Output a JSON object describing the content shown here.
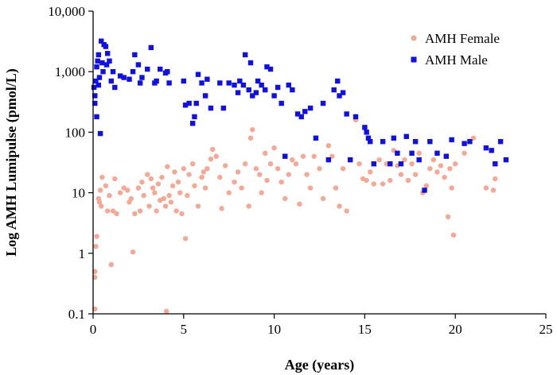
{
  "chart_data": {
    "type": "scatter",
    "xlabel": "Age (years)",
    "ylabel": "Log AMH Lumipulse (pmol/L)",
    "xlim": [
      0,
      25
    ],
    "ylim": [
      0.1,
      10000
    ],
    "y_scale": "log",
    "grid": false,
    "legend_position": "top-right",
    "x_ticks": [
      0,
      5,
      10,
      15,
      20,
      25
    ],
    "x_tick_labels": [
      "0",
      "5",
      "10",
      "15",
      "20",
      "25"
    ],
    "y_ticks": [
      0.1,
      1,
      10,
      100,
      1000,
      10000
    ],
    "y_tick_labels": [
      "0.1",
      "1",
      "10",
      "100",
      "1,000",
      "10,000"
    ],
    "series": [
      {
        "name": "AMH Female",
        "marker": "circle",
        "color": "#f4a896",
        "points": [
          [
            0.1,
            0.12
          ],
          [
            0.1,
            0.4
          ],
          [
            0.1,
            0.5
          ],
          [
            0.15,
            1.3
          ],
          [
            0.2,
            1.9
          ],
          [
            0.3,
            8
          ],
          [
            0.35,
            7
          ],
          [
            0.4,
            11
          ],
          [
            0.45,
            6
          ],
          [
            0.5,
            18
          ],
          [
            0.7,
            13
          ],
          [
            0.8,
            5
          ],
          [
            0.9,
            9
          ],
          [
            1.0,
            0.65
          ],
          [
            1.1,
            5
          ],
          [
            1.2,
            17
          ],
          [
            1.3,
            4.5
          ],
          [
            1.5,
            10
          ],
          [
            1.7,
            12
          ],
          [
            1.9,
            11
          ],
          [
            2.0,
            7
          ],
          [
            2.1,
            8
          ],
          [
            2.2,
            1.05
          ],
          [
            2.3,
            4.5
          ],
          [
            2.5,
            12
          ],
          [
            2.6,
            5
          ],
          [
            2.7,
            15
          ],
          [
            2.8,
            9
          ],
          [
            3.0,
            20
          ],
          [
            3.1,
            6
          ],
          [
            3.2,
            17
          ],
          [
            3.3,
            12
          ],
          [
            3.4,
            10
          ],
          [
            3.5,
            5
          ],
          [
            3.6,
            14
          ],
          [
            3.7,
            7.5
          ],
          [
            3.8,
            18
          ],
          [
            3.9,
            8
          ],
          [
            4.0,
            6
          ],
          [
            4.05,
            0.11
          ],
          [
            4.1,
            27
          ],
          [
            4.2,
            9
          ],
          [
            4.3,
            7
          ],
          [
            4.4,
            13
          ],
          [
            4.5,
            22
          ],
          [
            4.6,
            5
          ],
          [
            4.7,
            15
          ],
          [
            4.8,
            10
          ],
          [
            4.9,
            4.5
          ],
          [
            5.0,
            25
          ],
          [
            5.1,
            1.75
          ],
          [
            5.2,
            9
          ],
          [
            5.3,
            20
          ],
          [
            5.5,
            30
          ],
          [
            5.6,
            13
          ],
          [
            5.8,
            6
          ],
          [
            6.0,
            18
          ],
          [
            6.1,
            22
          ],
          [
            6.2,
            12
          ],
          [
            6.3,
            25
          ],
          [
            6.5,
            36
          ],
          [
            6.6,
            52
          ],
          [
            6.8,
            40
          ],
          [
            7.0,
            18
          ],
          [
            7.1,
            5.5
          ],
          [
            7.3,
            28
          ],
          [
            7.5,
            10
          ],
          [
            7.8,
            15
          ],
          [
            8.0,
            22
          ],
          [
            8.2,
            12
          ],
          [
            8.4,
            30
          ],
          [
            8.6,
            6
          ],
          [
            8.7,
            80
          ],
          [
            8.8,
            110
          ],
          [
            9.0,
            25
          ],
          [
            9.2,
            20
          ],
          [
            9.3,
            10
          ],
          [
            9.5,
            45
          ],
          [
            9.6,
            16
          ],
          [
            9.8,
            30
          ],
          [
            10.0,
            55
          ],
          [
            10.2,
            25
          ],
          [
            10.4,
            15
          ],
          [
            10.6,
            8
          ],
          [
            10.8,
            20
          ],
          [
            11.0,
            35
          ],
          [
            11.2,
            30
          ],
          [
            11.4,
            6.5
          ],
          [
            11.6,
            40
          ],
          [
            11.8,
            20
          ],
          [
            12.0,
            12
          ],
          [
            12.2,
            40
          ],
          [
            12.5,
            25
          ],
          [
            12.7,
            8
          ],
          [
            13.0,
            60
          ],
          [
            13.2,
            40
          ],
          [
            13.4,
            12
          ],
          [
            13.6,
            6
          ],
          [
            13.8,
            25
          ],
          [
            14.0,
            5
          ],
          [
            14.2,
            35
          ],
          [
            14.5,
            160
          ],
          [
            14.7,
            30
          ],
          [
            14.9,
            17
          ],
          [
            15.1,
            16
          ],
          [
            15.3,
            22
          ],
          [
            15.5,
            14
          ],
          [
            15.8,
            35
          ],
          [
            16.0,
            14
          ],
          [
            16.2,
            30
          ],
          [
            16.4,
            16
          ],
          [
            16.6,
            50
          ],
          [
            16.8,
            28
          ],
          [
            17.0,
            20
          ],
          [
            17.2,
            35
          ],
          [
            17.4,
            16
          ],
          [
            17.6,
            30
          ],
          [
            17.8,
            20
          ],
          [
            18.0,
            45
          ],
          [
            18.2,
            10
          ],
          [
            18.4,
            13
          ],
          [
            18.6,
            25
          ],
          [
            18.8,
            35
          ],
          [
            19.0,
            22
          ],
          [
            19.2,
            28
          ],
          [
            19.4,
            18
          ],
          [
            19.6,
            4
          ],
          [
            19.7,
            25
          ],
          [
            19.8,
            12
          ],
          [
            19.9,
            2.0
          ],
          [
            20.0,
            30
          ],
          [
            20.5,
            45
          ],
          [
            21.0,
            80
          ],
          [
            21.7,
            12
          ],
          [
            22.1,
            11
          ],
          [
            22.2,
            17
          ]
        ]
      },
      {
        "name": "AMH Male",
        "marker": "square",
        "color": "#1010e0",
        "points": [
          [
            0.05,
            550
          ],
          [
            0.1,
            400
          ],
          [
            0.1,
            300
          ],
          [
            0.15,
            700
          ],
          [
            0.2,
            180
          ],
          [
            0.2,
            1200
          ],
          [
            0.25,
            1500
          ],
          [
            0.3,
            600
          ],
          [
            0.3,
            1900
          ],
          [
            0.35,
            800
          ],
          [
            0.4,
            95
          ],
          [
            0.45,
            3200
          ],
          [
            0.5,
            1400
          ],
          [
            0.55,
            1000
          ],
          [
            0.6,
            2800
          ],
          [
            0.7,
            2600
          ],
          [
            0.75,
            1300
          ],
          [
            0.8,
            2000
          ],
          [
            0.9,
            1500
          ],
          [
            1.0,
            700
          ],
          [
            1.1,
            1000
          ],
          [
            1.2,
            550
          ],
          [
            1.5,
            850
          ],
          [
            1.7,
            800
          ],
          [
            2.0,
            750
          ],
          [
            2.2,
            1000
          ],
          [
            2.3,
            1900
          ],
          [
            2.5,
            1300
          ],
          [
            2.6,
            650
          ],
          [
            2.7,
            800
          ],
          [
            3.0,
            1100
          ],
          [
            3.2,
            2500
          ],
          [
            3.4,
            650
          ],
          [
            3.5,
            700
          ],
          [
            3.7,
            1100
          ],
          [
            4.0,
            950
          ],
          [
            4.1,
            1000
          ],
          [
            4.2,
            650
          ],
          [
            5.0,
            700
          ],
          [
            5.1,
            280
          ],
          [
            5.3,
            300
          ],
          [
            5.5,
            140
          ],
          [
            5.6,
            180
          ],
          [
            5.7,
            300
          ],
          [
            5.8,
            900
          ],
          [
            6.0,
            650
          ],
          [
            6.2,
            400
          ],
          [
            6.3,
            750
          ],
          [
            6.5,
            250
          ],
          [
            7.0,
            650
          ],
          [
            7.2,
            250
          ],
          [
            7.5,
            650
          ],
          [
            7.8,
            600
          ],
          [
            8.0,
            450
          ],
          [
            8.1,
            700
          ],
          [
            8.3,
            600
          ],
          [
            8.4,
            1900
          ],
          [
            8.6,
            500
          ],
          [
            8.7,
            1400
          ],
          [
            8.8,
            400
          ],
          [
            9.0,
            450
          ],
          [
            9.1,
            700
          ],
          [
            9.3,
            600
          ],
          [
            9.5,
            500
          ],
          [
            9.6,
            1200
          ],
          [
            9.8,
            1100
          ],
          [
            10.0,
            400
          ],
          [
            10.2,
            550
          ],
          [
            10.4,
            300
          ],
          [
            10.6,
            40
          ],
          [
            10.8,
            600
          ],
          [
            11.0,
            500
          ],
          [
            11.3,
            200
          ],
          [
            11.5,
            180
          ],
          [
            11.7,
            220
          ],
          [
            12.0,
            250
          ],
          [
            12.3,
            80
          ],
          [
            12.7,
            300
          ],
          [
            13.0,
            35
          ],
          [
            13.3,
            500
          ],
          [
            13.5,
            700
          ],
          [
            13.6,
            400
          ],
          [
            13.8,
            450
          ],
          [
            14.0,
            200
          ],
          [
            14.2,
            35
          ],
          [
            14.5,
            180
          ],
          [
            15.0,
            120
          ],
          [
            15.1,
            100
          ],
          [
            15.2,
            80
          ],
          [
            15.3,
            70
          ],
          [
            15.5,
            30
          ],
          [
            16.0,
            70
          ],
          [
            16.4,
            30
          ],
          [
            16.6,
            80
          ],
          [
            16.8,
            45
          ],
          [
            17.0,
            30
          ],
          [
            17.3,
            85
          ],
          [
            17.6,
            45
          ],
          [
            17.8,
            70
          ],
          [
            18.0,
            35
          ],
          [
            18.3,
            11
          ],
          [
            18.6,
            70
          ],
          [
            19.0,
            45
          ],
          [
            19.5,
            40
          ],
          [
            19.8,
            75
          ],
          [
            20.5,
            65
          ],
          [
            20.8,
            70
          ],
          [
            21.7,
            55
          ],
          [
            22.0,
            50
          ],
          [
            22.2,
            30
          ],
          [
            22.5,
            70
          ],
          [
            22.8,
            35
          ]
        ]
      }
    ]
  }
}
